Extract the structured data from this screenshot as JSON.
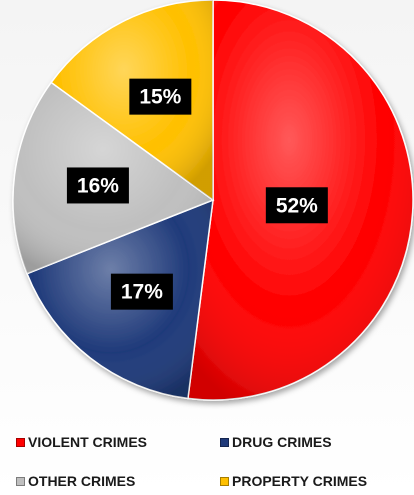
{
  "chart_data": {
    "type": "pie",
    "title": "",
    "slices": [
      {
        "name": "VIOLENT CRIMES",
        "value": 52,
        "label": "52%",
        "color": "#ff0000"
      },
      {
        "name": "DRUG CRIMES",
        "value": 17,
        "label": "17%",
        "color": "#1f3a7a"
      },
      {
        "name": "OTHER CRIMES",
        "value": 16,
        "label": "16%",
        "color": "#bfbfbf"
      },
      {
        "name": "PROPERTY CRIMES",
        "value": 15,
        "label": "15%",
        "color": "#ffc000"
      }
    ],
    "legend_position": "bottom"
  }
}
